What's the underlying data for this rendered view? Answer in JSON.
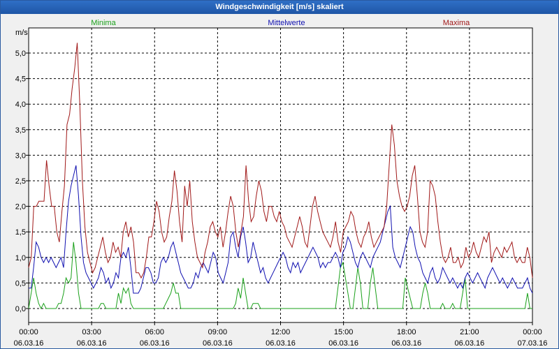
{
  "window": {
    "title": "Windgeschwindigkeit [m/s] skaliert"
  },
  "chart_data": {
    "type": "line",
    "title": "Windgeschwindigkeit [m/s] skaliert",
    "ylabel": "m/s",
    "ylim": [
      0,
      5.5
    ],
    "yticks": [
      0,
      0.5,
      1.0,
      1.5,
      2.0,
      2.5,
      3.0,
      3.5,
      4.0,
      4.5,
      5.0
    ],
    "ytick_labels": [
      "0,0",
      "0,5",
      "1,0",
      "1,5",
      "2,0",
      "2,5",
      "3,0",
      "3,5",
      "4,0",
      "4,5",
      "5,0"
    ],
    "xlim": [
      0,
      24
    ],
    "xticks": [
      {
        "h": 0,
        "time": "00:00",
        "date": "06.03.16"
      },
      {
        "h": 3,
        "time": "03:00",
        "date": "06.03.16"
      },
      {
        "h": 6,
        "time": "06:00",
        "date": "06.03.16"
      },
      {
        "h": 9,
        "time": "09:00",
        "date": "06.03.16"
      },
      {
        "h": 12,
        "time": "12:00",
        "date": "06.03.16"
      },
      {
        "h": 15,
        "time": "15:00",
        "date": "06.03.16"
      },
      {
        "h": 18,
        "time": "18:00",
        "date": "06.03.16"
      },
      {
        "h": 21,
        "time": "21:00",
        "date": "06.03.16"
      },
      {
        "h": 24,
        "time": "00:00",
        "date": "07.03.16"
      }
    ],
    "grid": true,
    "series": [
      {
        "name": "Minima",
        "color": "#1aa01a",
        "values": [
          0.0,
          0.3,
          0.6,
          0.3,
          0.1,
          0.0,
          0.1,
          0.0,
          0.0,
          0.0,
          0.0,
          0.0,
          0.1,
          0.1,
          0.3,
          0.6,
          0.5,
          0.6,
          1.3,
          0.9,
          0.3,
          0.0,
          0.0,
          0.0,
          0.0,
          0.0,
          0.0,
          0.0,
          0.0,
          0.1,
          0.1,
          0.0,
          0.0,
          0.0,
          0.0,
          0.0,
          0.3,
          0.1,
          0.4,
          0.3,
          0.4,
          0.1,
          0.0,
          0.0,
          0.0,
          0.0,
          0.0,
          0.0,
          0.0,
          0.0,
          0.0,
          0.0,
          0.0,
          0.0,
          0.0,
          0.1,
          0.2,
          0.3,
          0.5,
          0.3,
          0.3,
          0.0,
          0.0,
          0.0,
          0.0,
          0.0,
          0.0,
          0.0,
          0.0,
          0.0,
          0.0,
          0.0,
          0.0,
          0.0,
          0.0,
          0.0,
          0.0,
          0.0,
          0.0,
          0.0,
          0.0,
          0.0,
          0.0,
          0.1,
          0.4,
          0.2,
          0.6,
          0.3,
          0.0,
          0.0,
          0.1,
          0.1,
          0.1,
          0.0,
          0.0,
          0.0,
          0.0,
          0.0,
          0.0,
          0.0,
          0.0,
          0.0,
          0.0,
          0.0,
          0.0,
          0.0,
          0.0,
          0.0,
          0.0,
          0.0,
          0.0,
          0.0,
          0.0,
          0.0,
          0.0,
          0.0,
          0.0,
          0.0,
          0.0,
          0.0,
          0.0,
          0.0,
          0.0,
          0.0,
          0.4,
          0.8,
          0.9,
          0.6,
          0.3,
          0.0,
          0.0,
          0.4,
          0.8,
          0.5,
          0.0,
          0.0,
          0.0,
          0.5,
          0.8,
          0.4,
          0.0,
          0.0,
          0.0,
          0.0,
          0.0,
          0.0,
          0.0,
          0.0,
          0.0,
          0.0,
          0.0,
          0.6,
          0.4,
          0.2,
          0.0,
          0.0,
          0.0,
          0.0,
          0.3,
          0.5,
          0.3,
          0.0,
          0.0,
          0.0,
          0.0,
          0.0,
          0.1,
          0.0,
          0.0,
          0.0,
          0.1,
          0.0,
          0.0,
          0.0,
          0.3,
          0.6,
          0.0,
          0.0,
          0.0,
          0.0,
          0.0,
          0.0,
          0.0,
          0.0,
          0.0,
          0.0,
          0.0,
          0.0,
          0.0,
          0.0,
          0.0,
          0.0,
          0.0,
          0.0,
          0.0,
          0.0,
          0.0,
          0.0,
          0.0,
          0.0,
          0.3,
          0.0,
          0.0
        ]
      },
      {
        "name": "Mittelwerte",
        "color": "#1010b0",
        "values": [
          0.4,
          0.4,
          0.8,
          1.3,
          1.2,
          1.0,
          0.9,
          1.0,
          0.9,
          1.0,
          0.9,
          0.8,
          0.9,
          1.0,
          0.8,
          1.5,
          2.1,
          2.4,
          2.6,
          2.8,
          2.2,
          1.4,
          0.9,
          0.7,
          0.6,
          0.5,
          0.4,
          0.5,
          0.6,
          0.8,
          0.7,
          0.5,
          0.6,
          0.4,
          0.5,
          0.7,
          0.6,
          1.0,
          1.1,
          1.0,
          1.2,
          0.8,
          0.3,
          0.3,
          0.3,
          0.4,
          0.6,
          0.8,
          0.8,
          0.7,
          0.5,
          0.5,
          0.6,
          0.9,
          1.0,
          0.9,
          1.0,
          1.2,
          1.3,
          1.1,
          0.9,
          0.7,
          0.6,
          0.5,
          0.4,
          0.4,
          0.5,
          0.7,
          0.6,
          0.8,
          0.9,
          0.8,
          0.7,
          0.9,
          1.1,
          1.0,
          0.7,
          0.6,
          0.5,
          0.7,
          0.9,
          1.4,
          1.5,
          1.2,
          1.0,
          1.4,
          1.6,
          1.3,
          0.9,
          1.0,
          1.3,
          1.1,
          0.9,
          0.7,
          0.8,
          0.6,
          0.5,
          0.6,
          0.7,
          0.8,
          0.9,
          1.0,
          1.1,
          1.0,
          0.8,
          0.7,
          0.9,
          0.8,
          0.9,
          0.7,
          0.8,
          0.9,
          1.0,
          1.1,
          1.2,
          1.1,
          1.0,
          0.8,
          0.9,
          0.8,
          0.9,
          0.9,
          1.0,
          1.1,
          1.0,
          0.8,
          1.1,
          1.2,
          1.4,
          1.3,
          1.1,
          0.9,
          0.8,
          1.0,
          1.1,
          1.0,
          0.9,
          0.8,
          1.0,
          1.1,
          1.2,
          1.3,
          1.5,
          1.7,
          1.9,
          2.0,
          1.2,
          1.0,
          0.9,
          0.8,
          1.0,
          1.2,
          1.4,
          1.6,
          1.5,
          1.2,
          1.0,
          0.9,
          0.7,
          0.6,
          0.5,
          0.7,
          0.8,
          0.6,
          0.5,
          0.6,
          0.8,
          0.7,
          0.6,
          0.5,
          0.6,
          0.5,
          0.4,
          0.5,
          0.4,
          0.6,
          0.7,
          0.6,
          0.5,
          0.6,
          0.7,
          0.6,
          0.5,
          0.4,
          0.6,
          0.7,
          0.8,
          0.7,
          0.6,
          0.5,
          0.6,
          0.5,
          0.4,
          0.5,
          0.6,
          0.5,
          0.4,
          0.4,
          0.4,
          0.5,
          0.6,
          0.4,
          0.3
        ]
      },
      {
        "name": "Maxima",
        "color": "#a01818",
        "values": [
          0.8,
          1.0,
          2.0,
          2.0,
          2.1,
          2.1,
          2.1,
          2.9,
          2.4,
          2.0,
          2.0,
          1.5,
          1.3,
          1.9,
          2.4,
          3.6,
          3.8,
          4.3,
          4.7,
          5.2,
          4.0,
          2.5,
          1.6,
          1.1,
          0.9,
          0.7,
          0.8,
          1.0,
          1.2,
          1.4,
          1.1,
          0.9,
          1.0,
          1.3,
          1.1,
          1.2,
          1.0,
          1.5,
          1.7,
          1.4,
          1.6,
          1.3,
          0.7,
          0.7,
          0.6,
          0.7,
          1.0,
          1.4,
          1.4,
          1.7,
          2.1,
          1.9,
          1.5,
          1.3,
          1.4,
          1.8,
          2.1,
          2.7,
          2.3,
          1.7,
          1.3,
          2.4,
          2.0,
          2.5,
          1.7,
          1.3,
          1.0,
          0.9,
          0.8,
          1.1,
          1.3,
          1.6,
          1.7,
          1.5,
          1.4,
          1.6,
          1.2,
          1.5,
          1.9,
          2.2,
          2.0,
          1.5,
          1.2,
          1.5,
          1.8,
          2.8,
          2.1,
          1.7,
          1.8,
          2.2,
          2.5,
          2.3,
          1.9,
          1.7,
          2.0,
          2.0,
          1.8,
          1.7,
          1.9,
          1.7,
          1.6,
          1.4,
          1.3,
          1.2,
          1.4,
          1.6,
          1.8,
          1.6,
          1.3,
          1.2,
          1.6,
          2.0,
          2.2,
          1.9,
          1.7,
          1.5,
          1.4,
          1.3,
          1.2,
          1.4,
          1.7,
          1.3,
          1.1,
          1.5,
          1.6,
          1.7,
          1.9,
          1.8,
          1.5,
          1.3,
          1.2,
          1.4,
          1.5,
          1.7,
          1.4,
          1.2,
          1.3,
          1.4,
          1.5,
          1.6,
          2.0,
          2.8,
          3.6,
          3.2,
          2.5,
          2.2,
          2.0,
          1.9,
          2.0,
          2.2,
          2.6,
          2.8,
          2.2,
          1.5,
          1.3,
          1.2,
          1.5,
          2.5,
          2.4,
          2.2,
          1.7,
          1.3,
          1.0,
          0.9,
          1.0,
          1.2,
          0.9,
          0.9,
          1.0,
          0.8,
          0.9,
          1.2,
          1.0,
          1.1,
          1.3,
          1.1,
          1.0,
          1.2,
          1.4,
          1.3,
          1.5,
          0.9,
          1.1,
          1.2,
          1.1,
          1.0,
          1.2,
          1.1,
          1.2,
          1.3,
          1.0,
          0.9,
          1.0,
          0.9,
          0.9,
          1.2,
          1.0,
          0.6
        ]
      }
    ]
  }
}
